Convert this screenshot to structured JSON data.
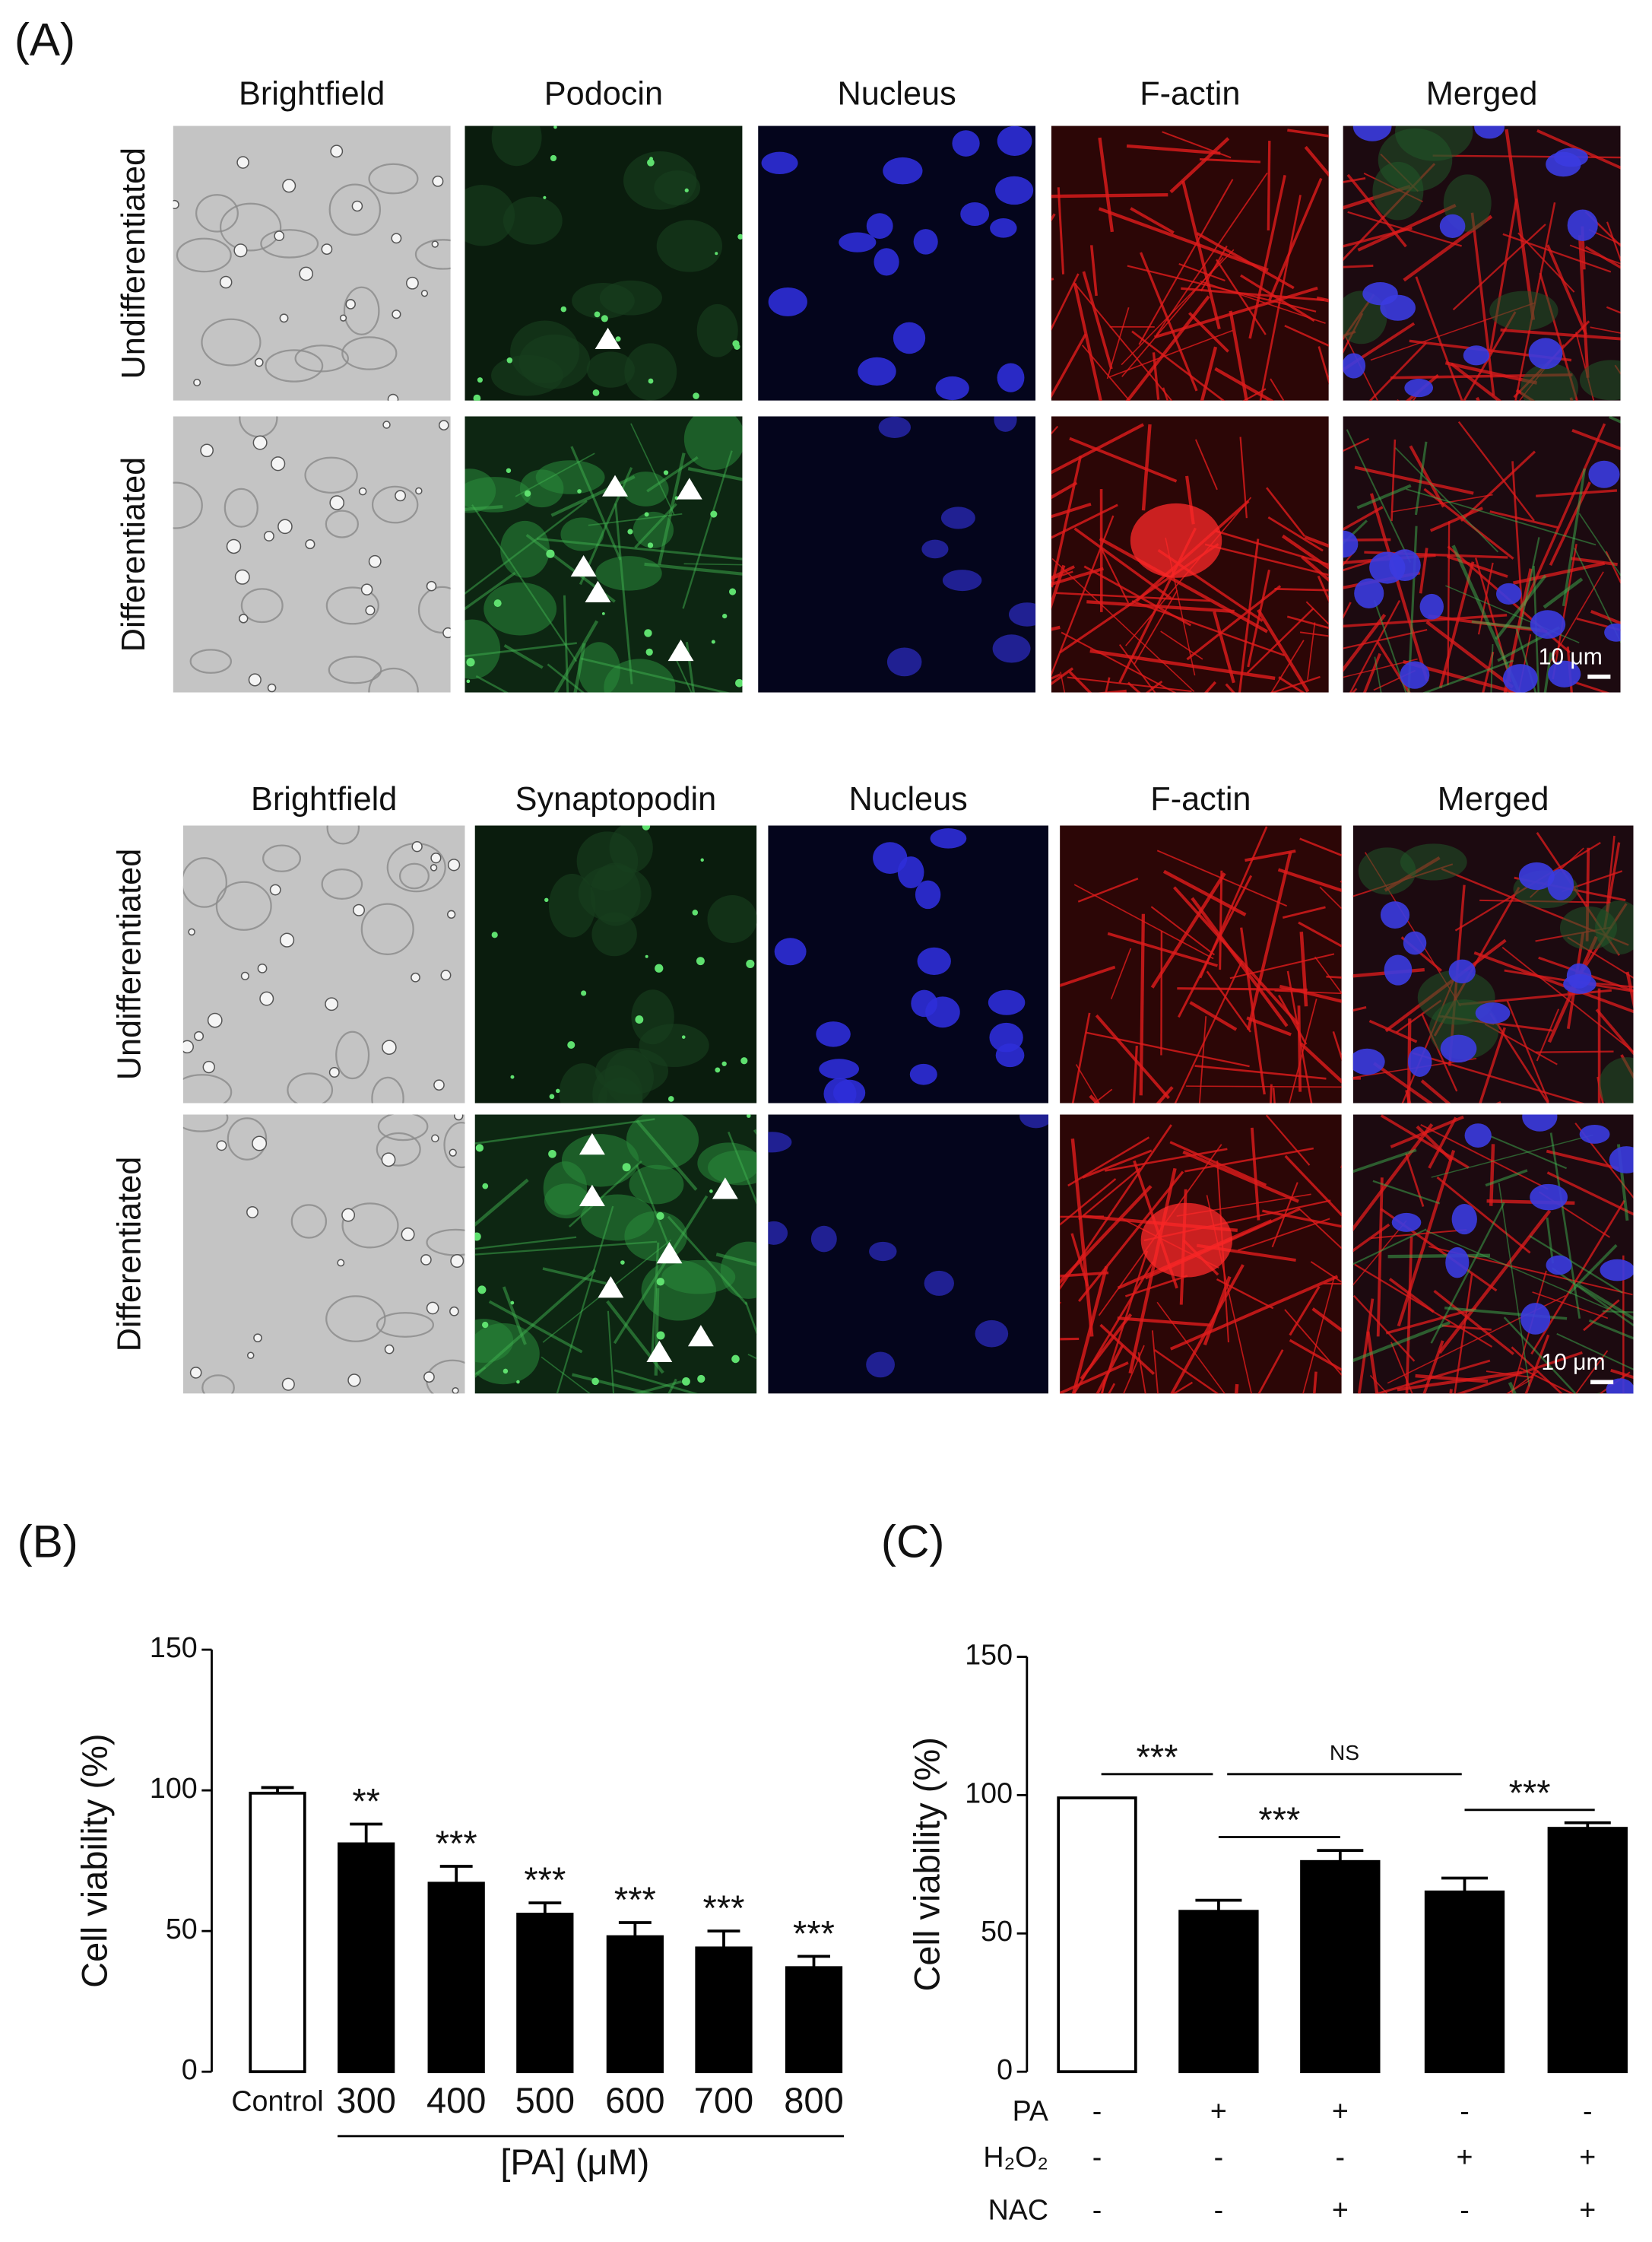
{
  "panel_a": {
    "label": "(A)",
    "podocin_block": {
      "columns": [
        "Brightfield",
        "Podocin",
        "Nucleus",
        "F-actin",
        "Merged"
      ],
      "rows": [
        "Undifferentiated",
        "Differentiated"
      ],
      "scale_bar": "10 μm"
    },
    "synaptopodin_block": {
      "columns": [
        "Brightfield",
        "Synaptopodin",
        "Nucleus",
        "F-actin",
        "Merged"
      ],
      "rows": [
        "Undifferentiated",
        "Differentiated"
      ],
      "scale_bar": "10 μm"
    }
  },
  "chart_data": [
    {
      "type": "bar",
      "panel_label": "(B)",
      "ylabel": "Cell viability (%)",
      "xlabel": "[PA] (μM)",
      "categories": [
        "Control",
        "300",
        "400",
        "500",
        "600",
        "700",
        "800"
      ],
      "values": [
        99,
        81,
        67,
        56,
        48,
        44,
        37
      ],
      "errors": [
        2,
        7,
        6,
        4,
        5,
        6,
        4
      ],
      "annotations": [
        null,
        "**",
        "***",
        "***",
        "***",
        "***",
        "***"
      ],
      "colors": [
        "#ffffff",
        "#000000",
        "#000000",
        "#000000",
        "#000000",
        "#000000",
        "#000000"
      ],
      "ylim": [
        0,
        150
      ],
      "yticks": [
        0,
        50,
        100,
        150
      ]
    },
    {
      "type": "bar",
      "panel_label": "(C)",
      "ylabel": "Cell viability (%)",
      "categories": [
        null,
        null,
        null,
        null,
        null
      ],
      "values": [
        99,
        58,
        76,
        65,
        88
      ],
      "errors": [
        0,
        4,
        4,
        5,
        2
      ],
      "colors": [
        "#ffffff",
        "#000000",
        "#000000",
        "#000000",
        "#000000"
      ],
      "conditions": [
        {
          "name": "PA",
          "values": [
            "-",
            "+",
            "+",
            "-",
            "-"
          ]
        },
        {
          "name": "H₂O₂",
          "values": [
            "-",
            "-",
            "-",
            "+",
            "+"
          ]
        },
        {
          "name": "NAC",
          "values": [
            "-",
            "-",
            "+",
            "-",
            "+"
          ]
        }
      ],
      "comparisons": [
        "***",
        "NS",
        "***",
        "***"
      ],
      "ylim": [
        0,
        150
      ],
      "yticks": [
        0,
        50,
        100,
        150
      ]
    }
  ]
}
